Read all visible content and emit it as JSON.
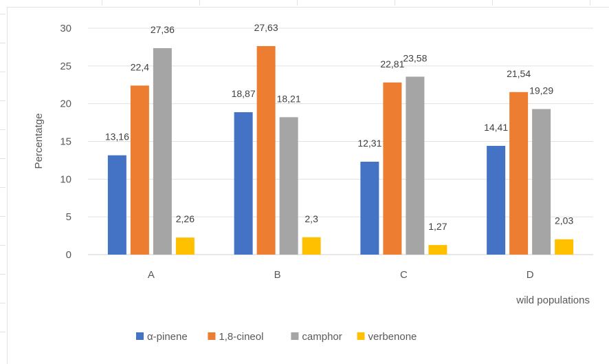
{
  "chart_data": {
    "type": "bar",
    "categories": [
      "A",
      "B",
      "C",
      "D"
    ],
    "series": [
      {
        "name": "α-pinene",
        "values": [
          13.16,
          18.87,
          12.31,
          14.41
        ],
        "labels": [
          "13,16",
          "18,87",
          "12,31",
          "14,41"
        ],
        "color": "#4472C4"
      },
      {
        "name": "1,8-cineol",
        "values": [
          22.4,
          27.63,
          22.81,
          21.54
        ],
        "labels": [
          "22,4",
          "27,63",
          "22,81",
          "21,54"
        ],
        "color": "#ED7D31"
      },
      {
        "name": "camphor",
        "values": [
          27.36,
          18.21,
          23.58,
          19.29
        ],
        "labels": [
          "27,36",
          "18,21",
          "23,58",
          "19,29"
        ],
        "color": "#A5A5A5"
      },
      {
        "name": "verbenone",
        "values": [
          2.26,
          2.3,
          1.27,
          2.03
        ],
        "labels": [
          "2,26",
          "2,3",
          "1,27",
          "2,03"
        ],
        "color": "#FFC000"
      }
    ],
    "title": "",
    "xlabel": "wild populations",
    "ylabel": "Percentatge",
    "ylim": [
      0,
      30
    ],
    "yticks": [
      0,
      5,
      10,
      15,
      20,
      25,
      30
    ],
    "grid": true,
    "legend_position": "bottom"
  }
}
